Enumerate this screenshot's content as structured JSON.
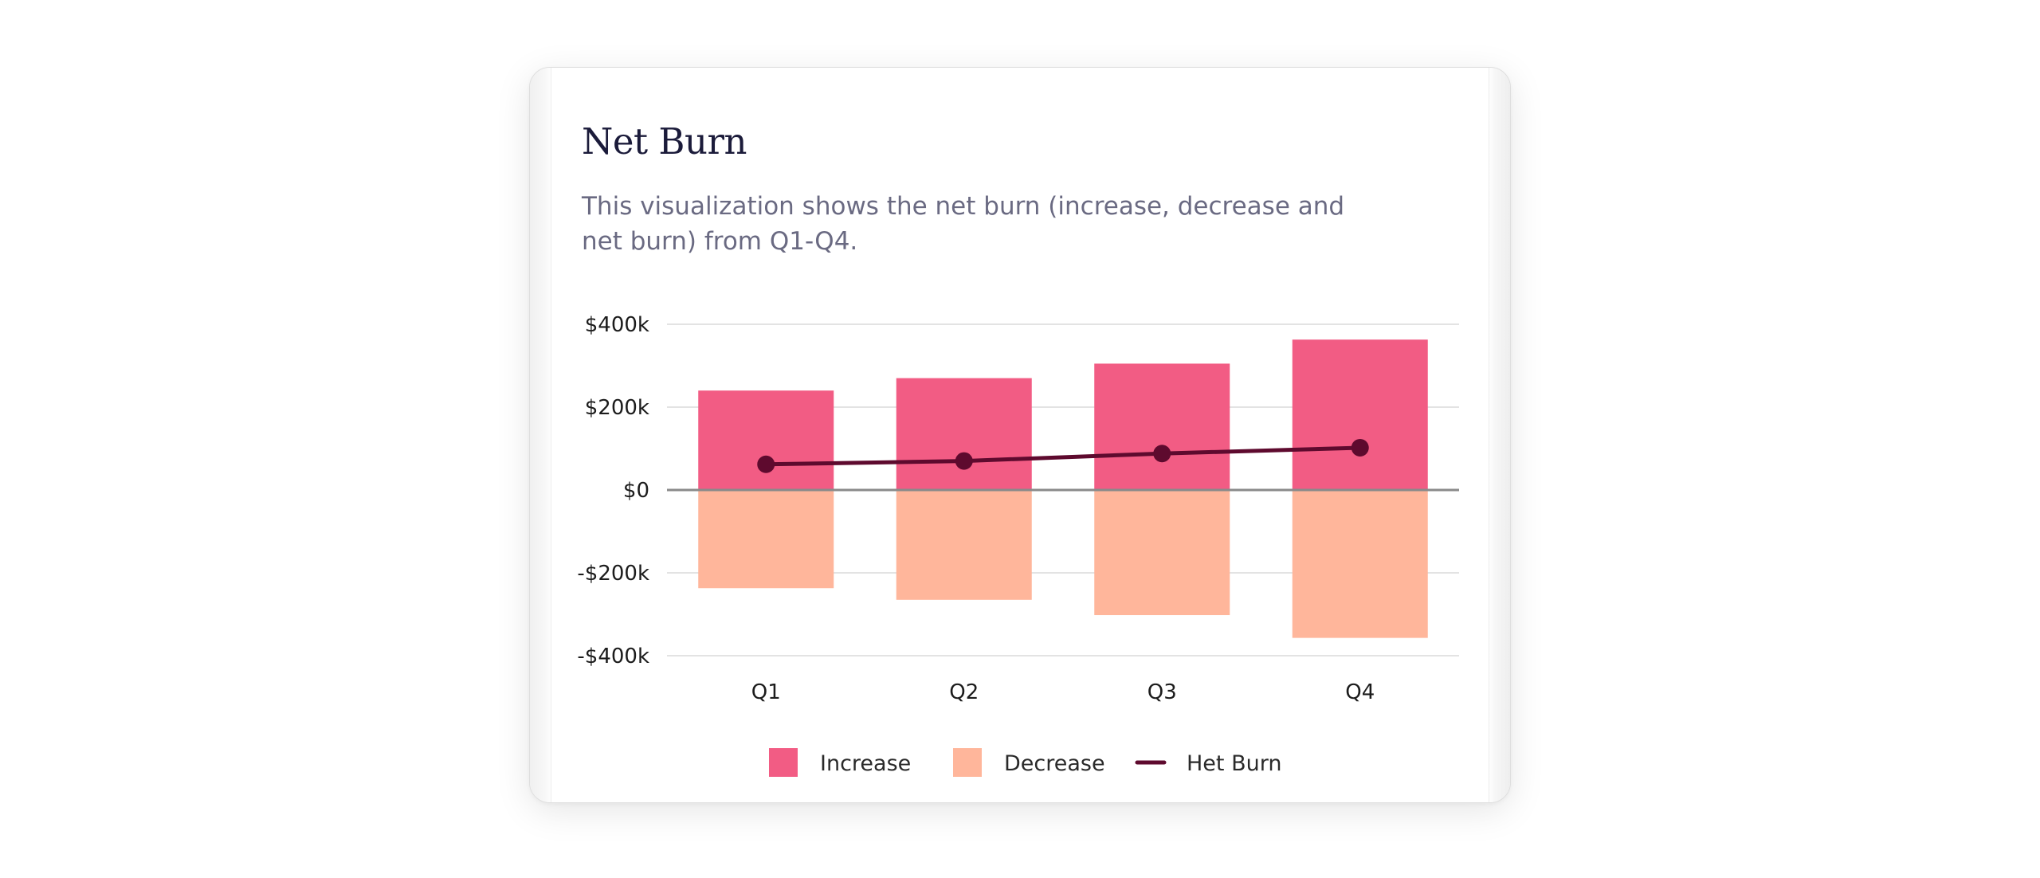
{
  "card": {
    "title": "Net Burn",
    "description": "This visualization shows the net burn (increase, decrease and net burn) from Q1-Q4."
  },
  "chart_data": {
    "type": "bar",
    "categories": [
      "Q1",
      "Q2",
      "Q3",
      "Q4"
    ],
    "series": [
      {
        "name": "Increase",
        "kind": "bar",
        "color": "#f25c84",
        "values": [
          240000,
          270000,
          305000,
          363000
        ]
      },
      {
        "name": "Decrease",
        "kind": "bar",
        "color": "#ffb69b",
        "values": [
          -237000,
          -265000,
          -302000,
          -357000
        ]
      },
      {
        "name": "Het Burn",
        "kind": "line",
        "color": "#5e0a2e",
        "values": [
          62000,
          70000,
          88000,
          102000
        ]
      }
    ],
    "y_ticks": [
      {
        "value": 400000,
        "label": "$400k"
      },
      {
        "value": 200000,
        "label": "$200k"
      },
      {
        "value": 0,
        "label": "$0"
      },
      {
        "value": -200000,
        "label": "-$200k"
      },
      {
        "value": -400000,
        "label": "-$400k"
      }
    ],
    "ylim": [
      -400000,
      400000
    ],
    "grid": true,
    "legend_position": "bottom-center",
    "colors": {
      "grid": "#e3e3e3",
      "zero_line": "#8a8a8a"
    }
  }
}
